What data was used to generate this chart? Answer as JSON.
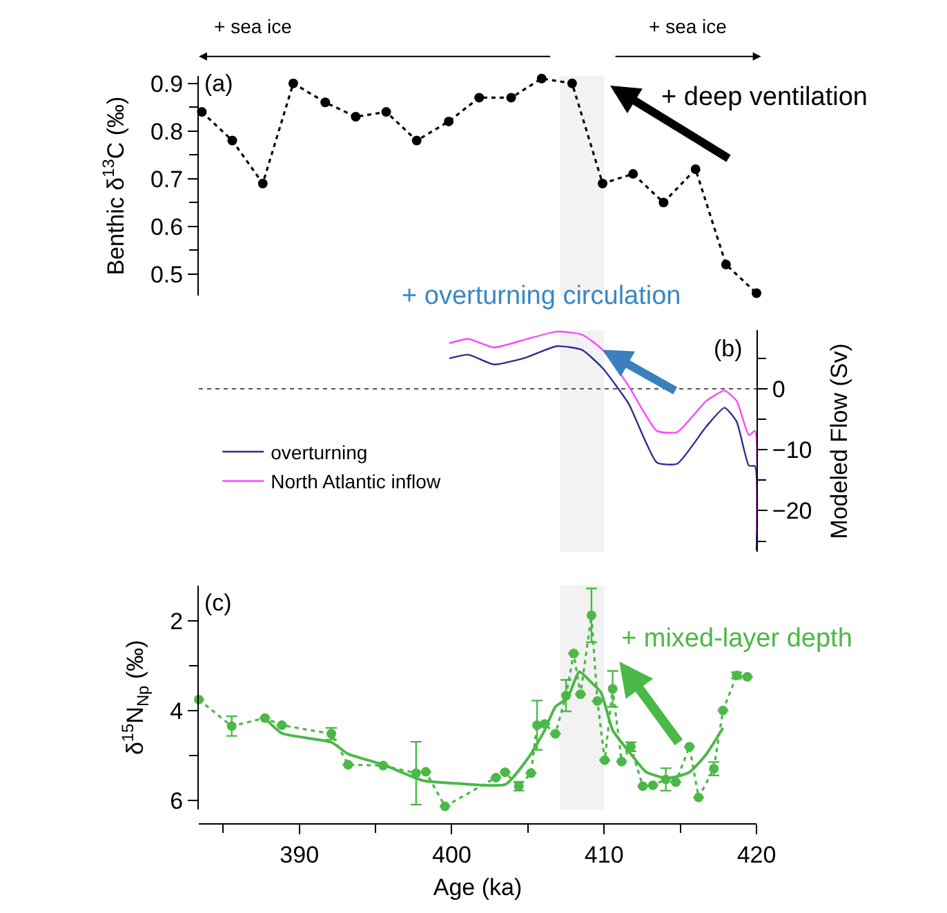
{
  "chart_data": [
    {
      "type": "line",
      "ylabel": "Benthic δ$^{13}$C (‰)",
      "xlim": [
        383.4,
        420
      ],
      "ylim": [
        0.455,
        0.915
      ],
      "tick_labels": "y",
      "yticks": [
        0.5,
        0.6,
        0.7,
        0.8,
        0.9,
        {
          "value": 0.55,
          "label": null
        },
        {
          "value": 0.65,
          "label": null
        },
        {
          "value": 0.75,
          "label": null
        },
        {
          "value": 0.85,
          "label": null
        }
      ],
      "marker": "circle",
      "line_style": "dotted",
      "series": [
        {
          "color": "#000000",
          "x": [
            383.6,
            385.6,
            387.6,
            389.6,
            391.7,
            393.7,
            395.7,
            397.7,
            399.8,
            401.8,
            403.9,
            405.9,
            407.9,
            409.9,
            411.9,
            413.9,
            416.0,
            418.0,
            420.0
          ],
          "values": [
            0.84,
            0.78,
            0.69,
            0.9,
            0.86,
            0.83,
            0.84,
            0.78,
            0.82,
            0.87,
            0.87,
            0.91,
            0.9,
            0.69,
            0.71,
            0.65,
            0.72,
            0.52,
            0.46
          ]
        }
      ],
      "bands": [
        {
          "axis": "x",
          "from": 407.1,
          "to": 410,
          "color": "#f2f2f2"
        }
      ],
      "annotations": [
        "+ sea ice",
        "+ sea ice",
        "+ deep ventilation",
        "(a)"
      ]
    },
    {
      "type": "line",
      "ylabel": "Modeled Flow (Sv)",
      "xlim": [
        383.4,
        420
      ],
      "ylim": [
        -26.8,
        9.6
      ],
      "tick_labels": "y",
      "yticks": [
        0,
        {
          "value": -10,
          "label": "−10"
        },
        {
          "value": -20,
          "label": "−20"
        },
        {
          "value": 5,
          "label": null
        },
        {
          "value": -5,
          "label": null
        },
        {
          "value": -15,
          "label": null
        },
        {
          "value": -25,
          "label": null
        }
      ],
      "legend": "left",
      "series": [
        {
          "name": "overturning",
          "color": "#2b2f8a",
          "x": [
            399.84,
            401.09,
            402.78,
            404.82,
            406.9,
            408.55,
            409.9,
            411.6,
            413.46,
            414.8,
            416.7,
            417.9,
            418.7,
            419.5,
            419.9,
            420.0
          ],
          "values": [
            5.0,
            5.6,
            4.0,
            5.1,
            7.0,
            6.4,
            3.4,
            -2.4,
            -12.1,
            -12.3,
            -6.2,
            -3.1,
            -5.4,
            -12.6,
            -12.7,
            -26.5
          ]
        },
        {
          "name": "North Atlantic inflow",
          "color": "#ff44ff",
          "x": [
            399.84,
            401.09,
            402.78,
            404.82,
            406.9,
            408.55,
            409.9,
            411.6,
            413.46,
            414.8,
            416.7,
            417.9,
            418.7,
            419.5,
            419.9,
            420.0
          ],
          "values": [
            7.5,
            8.2,
            6.8,
            8.1,
            9.4,
            8.9,
            6.4,
            0.5,
            -6.9,
            -7.1,
            -2.0,
            -0.3,
            -2.0,
            -7.6,
            -6.9,
            -23.9
          ]
        }
      ],
      "ref_lines": [
        {
          "axis": "y",
          "value": 0,
          "color": "#555555",
          "line_style": "dotted"
        }
      ],
      "bands": [
        {
          "axis": "x",
          "from": 407.1,
          "to": 410,
          "color": "#f2f2f2"
        }
      ],
      "annotations": [
        {
          "text": "+ overturning circulation",
          "x": 409.9,
          "y": 6.4
        },
        "(b)"
      ]
    },
    {
      "type": "line",
      "xlabel": "Age (ka)",
      "ylabel": "δ$^{15}$N$_{Np}$ (‰)",
      "xlim": [
        383.4,
        420
      ],
      "ylim": [
        6.2,
        1.2
      ],
      "xticks": [
        390,
        400,
        410,
        420,
        {
          "value": 385,
          "label": null
        },
        {
          "value": 395,
          "label": null
        },
        {
          "value": 405,
          "label": null
        },
        {
          "value": 415,
          "label": null
        }
      ],
      "yticks": [
        2,
        4,
        6,
        {
          "value": 3,
          "label": null
        },
        {
          "value": 5,
          "label": null
        }
      ],
      "series": [
        {
          "color": "#4cb848",
          "marker": "circle",
          "line_style": "dotted",
          "x": [
            383.4,
            385.56,
            387.74,
            388.85,
            392.1,
            393.2,
            395.5,
            397.66,
            398.3,
            399.56,
            402.9,
            403.5,
            404.4,
            405.2,
            405.6,
            406.1,
            406.8,
            407.5,
            408.0,
            408.45,
            409.17,
            409.56,
            410.04,
            410.56,
            411.15,
            411.75,
            412.54,
            413.2,
            414.05,
            414.7,
            415.6,
            416.2,
            417.2,
            417.8,
            418.7,
            419.4
          ],
          "values": [
            3.75,
            4.34,
            4.16,
            4.32,
            4.51,
            5.2,
            5.22,
            5.39,
            5.36,
            6.13,
            5.49,
            5.37,
            5.68,
            5.39,
            4.32,
            4.29,
            4.51,
            3.66,
            2.72,
            3.63,
            1.87,
            3.78,
            5.1,
            3.51,
            5.13,
            4.8,
            5.68,
            5.66,
            5.53,
            5.59,
            4.8,
            5.93,
            5.29,
            3.99,
            3.21,
            3.24
          ],
          "errors": [
            null,
            0.22,
            null,
            null,
            0.13,
            null,
            null,
            0.7,
            null,
            null,
            null,
            null,
            0.1,
            null,
            0.55,
            null,
            null,
            0.35,
            null,
            null,
            0.6,
            null,
            null,
            0.4,
            null,
            0.1,
            null,
            null,
            0.25,
            null,
            null,
            null,
            0.15,
            null,
            0.07,
            null
          ]
        },
        {
          "color": "#4cb848",
          "marker": "none",
          "line_style": "solid",
          "x": [
            387.74,
            388.85,
            392.1,
            393.2,
            395.5,
            398.06,
            400.44,
            403.53,
            405.2,
            406.1,
            406.8,
            407.6,
            408.37,
            409.17,
            409.8,
            410.56,
            411.75,
            412.74,
            414.05,
            414.7,
            415.6,
            416.7,
            417.8
          ],
          "values": [
            4.16,
            4.5,
            4.7,
            4.96,
            5.2,
            5.55,
            5.62,
            5.64,
            4.96,
            4.43,
            3.91,
            3.71,
            3.13,
            3.37,
            3.59,
            4.43,
            4.96,
            5.36,
            5.5,
            5.47,
            5.37,
            4.97,
            4.38
          ]
        }
      ],
      "bands": [
        {
          "axis": "x",
          "from": 407.1,
          "to": 410,
          "color": "#f2f2f2"
        }
      ],
      "annotations": [
        "+ mixed-layer depth",
        "(c)"
      ]
    }
  ]
}
